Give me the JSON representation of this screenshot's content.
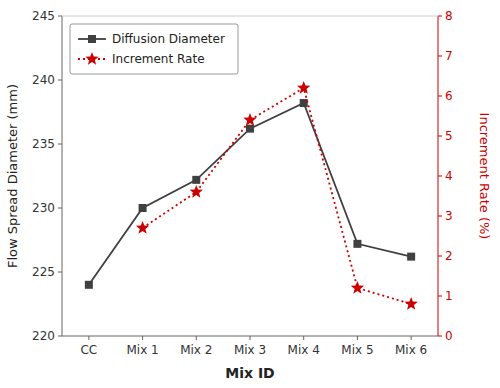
{
  "chart_data": {
    "type": "line",
    "categories": [
      "CC",
      "Mix 1",
      "Mix 2",
      "Mix 3",
      "Mix 4",
      "Mix 5",
      "Mix 6"
    ],
    "x_label": "Mix ID",
    "y_label": "Flow Spread Diameter (mm)",
    "y2_label": "Increment Rate (%)",
    "ylim": [
      220,
      245
    ],
    "yticks": [
      220,
      225,
      230,
      235,
      240,
      245
    ],
    "y2lim": [
      0,
      8
    ],
    "y2ticks": [
      0,
      1,
      2,
      3,
      4,
      5,
      6,
      7,
      8
    ],
    "grid": false,
    "legend": "upper left",
    "series": [
      {
        "name": "Diffusion Diameter",
        "color": "#404040",
        "marker": "square",
        "line_style": "solid",
        "values": [
          224.0,
          230.0,
          232.2,
          236.2,
          238.2,
          227.2,
          226.2
        ]
      },
      {
        "name": "Increment Rate",
        "color": "#cc0000",
        "marker": "star",
        "line_style": "dotted",
        "axis": "y2",
        "values": [
          null,
          2.7,
          3.6,
          5.4,
          6.2,
          1.2,
          0.8
        ]
      }
    ]
  }
}
